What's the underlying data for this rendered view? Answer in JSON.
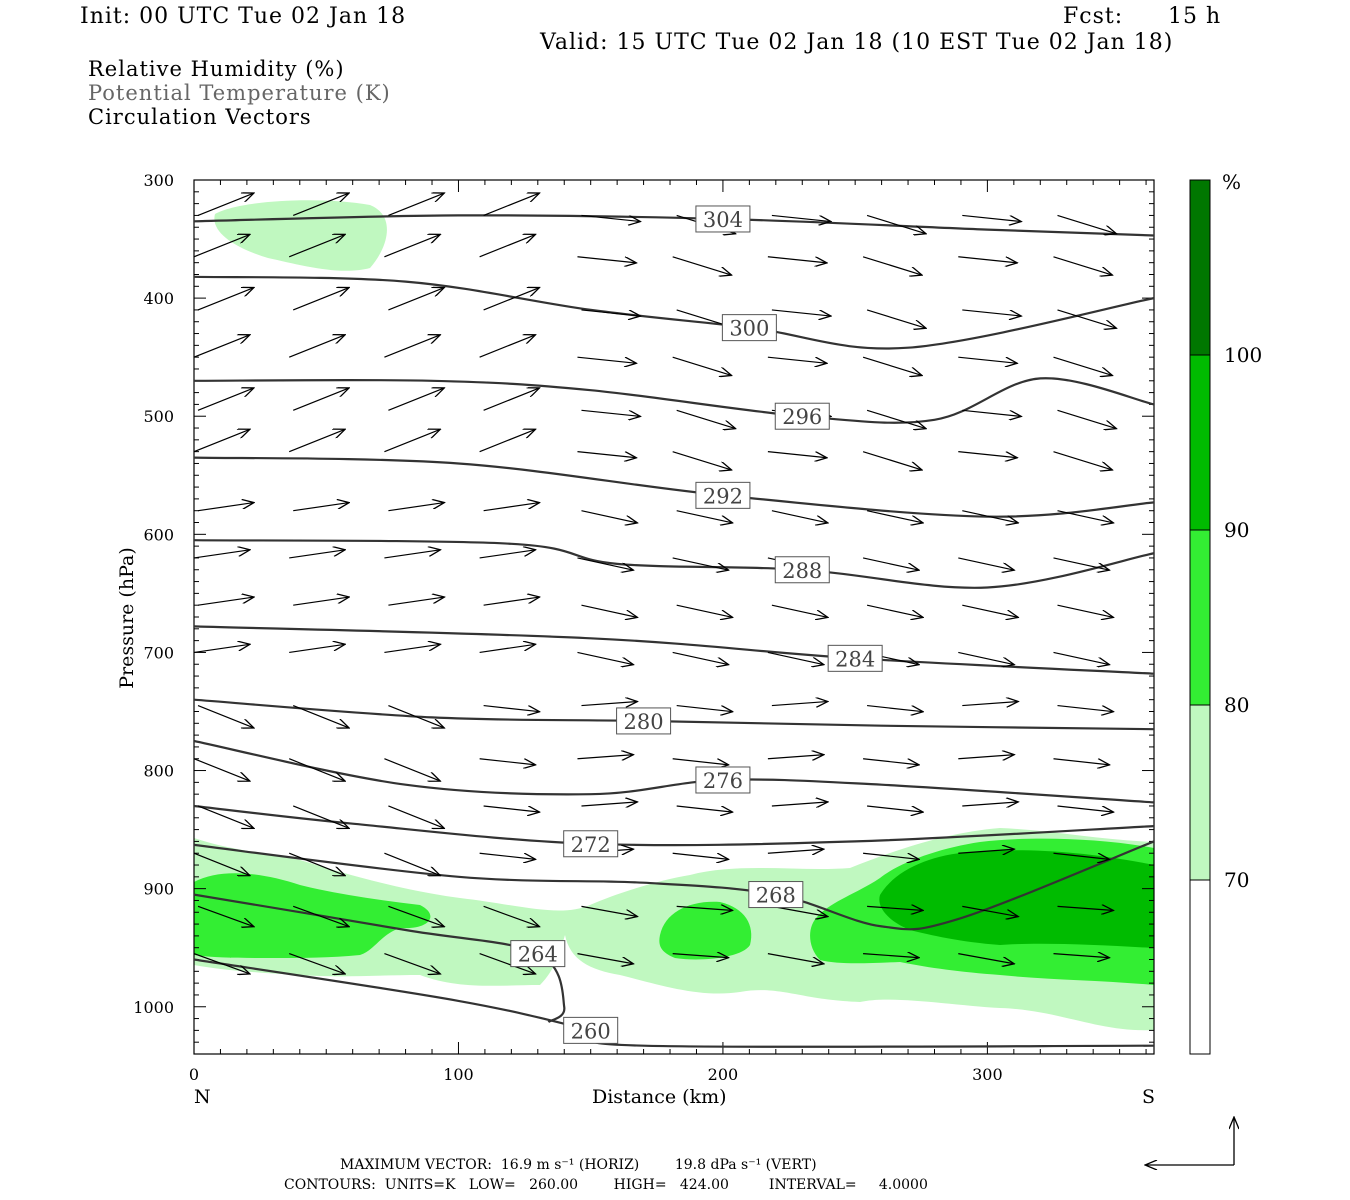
{
  "header": {
    "init": "Init: 00 UTC Tue 02 Jan 18",
    "fcst_label": "Fcst:",
    "fcst_value": "15 h",
    "valid": "Valid: 15 UTC Tue 02 Jan 18 (10 EST Tue 02 Jan 18)"
  },
  "legend": {
    "rh": "Relative Humidity (%)",
    "theta": "Potential Temperature (K)",
    "vectors": "Circulation Vectors"
  },
  "colorbar": {
    "unit": "%",
    "levels": [
      "70",
      "80",
      "90",
      "100"
    ],
    "colors": [
      "#ffffff",
      "#c0f8c0",
      "#33ee33",
      "#00bb00",
      "#007700"
    ]
  },
  "footer": {
    "max_vector": "MAXIMUM VECTOR:  16.9 m s⁻¹ (HORIZ)        19.8 dPa s⁻¹ (VERT)",
    "contours": "CONTOURS:  UNITS=K   LOW=   260.00        HIGH=   424.00         INTERVAL=     4.0000"
  },
  "chart_data": {
    "type": "cross-section",
    "xlabel": "Distance (km)",
    "ylabel": "Pressure (hPa)",
    "x_end_labels": {
      "left": "N",
      "right": "S"
    },
    "xlim": [
      0,
      363
    ],
    "ylim": [
      1040,
      300
    ],
    "x_ticks": [
      0,
      100,
      200,
      300
    ],
    "y_ticks": [
      300,
      400,
      500,
      600,
      700,
      800,
      900,
      1000
    ],
    "theta_contours": [
      {
        "label": "304",
        "points": [
          [
            0,
            335
          ],
          [
            100,
            330
          ],
          [
            200,
            333
          ],
          [
            300,
            342
          ],
          [
            363,
            347
          ]
        ]
      },
      {
        "label": "300",
        "points": [
          [
            0,
            382
          ],
          [
            80,
            386
          ],
          [
            150,
            410
          ],
          [
            210,
            425
          ],
          [
            270,
            442
          ],
          [
            363,
            400
          ]
        ]
      },
      {
        "label": "296",
        "points": [
          [
            0,
            470
          ],
          [
            90,
            470
          ],
          [
            150,
            478
          ],
          [
            230,
            500
          ],
          [
            280,
            503
          ],
          [
            320,
            468
          ],
          [
            363,
            490
          ]
        ]
      },
      {
        "label": "292",
        "points": [
          [
            0,
            535
          ],
          [
            100,
            540
          ],
          [
            200,
            567
          ],
          [
            300,
            585
          ],
          [
            363,
            573
          ]
        ]
      },
      {
        "label": "288",
        "points": [
          [
            0,
            605
          ],
          [
            120,
            608
          ],
          [
            160,
            625
          ],
          [
            230,
            630
          ],
          [
            300,
            645
          ],
          [
            363,
            616
          ]
        ]
      },
      {
        "label": "284",
        "points": [
          [
            0,
            678
          ],
          [
            150,
            688
          ],
          [
            250,
            705
          ],
          [
            363,
            718
          ]
        ]
      },
      {
        "label": "280",
        "points": [
          [
            0,
            740
          ],
          [
            90,
            755
          ],
          [
            170,
            758
          ],
          [
            260,
            762
          ],
          [
            363,
            765
          ]
        ]
      },
      {
        "label": "276",
        "points": [
          [
            0,
            775
          ],
          [
            80,
            812
          ],
          [
            150,
            820
          ],
          [
            200,
            808
          ],
          [
            260,
            812
          ],
          [
            363,
            827
          ]
        ]
      },
      {
        "label": "272",
        "points": [
          [
            0,
            830
          ],
          [
            60,
            845
          ],
          [
            150,
            862
          ],
          [
            250,
            860
          ],
          [
            363,
            847
          ]
        ]
      },
      {
        "label": "268",
        "points": [
          [
            0,
            863
          ],
          [
            100,
            890
          ],
          [
            170,
            895
          ],
          [
            220,
            905
          ],
          [
            260,
            932
          ],
          [
            290,
            925
          ],
          [
            363,
            860
          ]
        ]
      },
      {
        "label": "264",
        "points": [
          [
            0,
            905
          ],
          [
            80,
            935
          ],
          [
            130,
            955
          ],
          [
            140,
            1000
          ],
          [
            134,
            1013
          ]
        ]
      },
      {
        "label": "260",
        "points": [
          [
            0,
            960
          ],
          [
            100,
            995
          ],
          [
            150,
            1020
          ],
          [
            170,
            1033
          ],
          [
            363,
            1033
          ]
        ]
      }
    ],
    "rh_levels": [
      70,
      80,
      90,
      100
    ],
    "rh_regions": [
      {
        "min_rh": 70,
        "area": "upper-left near 320-360 hPa, 10-70 km"
      },
      {
        "min_rh": 70,
        "area": "lower band 860-1030 hPa across section"
      },
      {
        "min_rh": 80,
        "area": "near-surface 880-960 hPa, 0-90 km and 180-363 km"
      },
      {
        "min_rh": 90,
        "area": "880-945 hPa, 270-363 km"
      }
    ],
    "max_vector_horiz": 16.9,
    "max_vector_vert": 19.8
  }
}
